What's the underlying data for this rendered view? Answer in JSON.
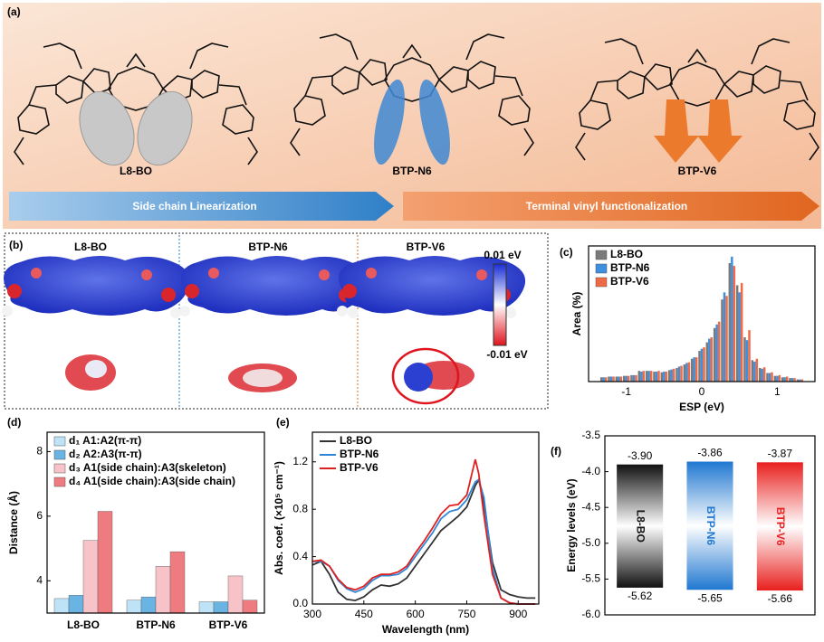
{
  "panel_a": {
    "label": "(a)",
    "molecules": [
      "L8-BO",
      "BTP-N6",
      "BTP-V6"
    ],
    "arrows": [
      "Side chain Linearization",
      "Terminal vinyl functionalization"
    ]
  },
  "panel_b": {
    "label": "(b)",
    "molecules": [
      "L8-BO",
      "BTP-N6",
      "BTP-V6"
    ],
    "colorbar": {
      "max": "0.01 eV",
      "min": "-0.01 eV"
    }
  },
  "chart_data": [
    {
      "type": "bar",
      "label": "(c)",
      "xlabel": "ESP (eV)",
      "ylabel": "Area (%)",
      "x": [
        -1.3,
        -1.2,
        -1.1,
        -1.0,
        -0.9,
        -0.8,
        -0.7,
        -0.6,
        -0.5,
        -0.4,
        -0.3,
        -0.2,
        -0.1,
        0.0,
        0.1,
        0.2,
        0.3,
        0.4,
        0.5,
        0.6,
        0.7,
        0.8,
        0.9,
        1.0,
        1.1,
        1.2,
        1.3
      ],
      "series": [
        {
          "name": "L8-BO",
          "color": "#7a7a7a",
          "values": [
            0.6,
            0.7,
            0.7,
            0.8,
            0.9,
            1.5,
            1.5,
            1.4,
            1.3,
            1.6,
            1.9,
            2.4,
            3.2,
            4.3,
            5.5,
            7.5,
            11.5,
            16.6,
            13.5,
            6.2,
            3,
            1.9,
            1.2,
            0.8,
            0.6,
            0.5,
            0.3
          ]
        },
        {
          "name": "BTP-N6",
          "color": "#3d8fe0",
          "values": [
            0.6,
            0.7,
            0.7,
            0.8,
            0.9,
            1.4,
            1.5,
            1.4,
            1.4,
            1.7,
            2.1,
            2.6,
            3.4,
            4.6,
            6,
            8,
            12.5,
            17.5,
            12.5,
            5.8,
            2.8,
            1.8,
            1.2,
            0.8,
            0.6,
            0.5,
            0.3
          ]
        },
        {
          "name": "BTP-V6",
          "color": "#f06a45",
          "values": [
            0.6,
            0.7,
            0.7,
            0.8,
            0.9,
            1.5,
            1.5,
            1.5,
            1.4,
            1.8,
            2.2,
            2.7,
            3.4,
            4.8,
            6.2,
            8.4,
            12,
            16.2,
            13.8,
            7.2,
            3.2,
            2,
            1.3,
            0.9,
            0.7,
            0.5,
            0.3
          ]
        }
      ],
      "xlim": [
        -1.5,
        1.5
      ],
      "xticks": [
        -1,
        0,
        1
      ],
      "ylim": [
        0,
        19
      ],
      "legend": "upper left"
    },
    {
      "type": "bar",
      "label": "(d)",
      "ylabel": "Distance (Å)",
      "categories": [
        "L8-BO",
        "BTP-N6",
        "BTP-V6"
      ],
      "series": [
        {
          "name": "d₁ A1:A2(π-π)",
          "color": "#bfe3f6",
          "values": [
            3.45,
            3.4,
            3.35
          ]
        },
        {
          "name": "d₂ A2:A3(π-π)",
          "color": "#6ab4e3",
          "values": [
            3.55,
            3.5,
            3.35
          ]
        },
        {
          "name": "d₃ A1(side chain):A3(skeleton)",
          "color": "#f7c3c8",
          "values": [
            5.25,
            4.45,
            4.15
          ]
        },
        {
          "name": "d₄ A1(side chain):A3(side chain)",
          "color": "#ee7b80",
          "values": [
            6.15,
            4.9,
            3.4
          ]
        }
      ],
      "ylim": [
        3,
        8.6
      ],
      "yticks": [
        4,
        6,
        8
      ],
      "legend": "upper left"
    },
    {
      "type": "line",
      "label": "(e)",
      "xlabel": "Wavelength (nm)",
      "ylabel": "Abs. coef. (×10⁵ cm⁻¹)",
      "x": [
        300,
        325,
        350,
        375,
        400,
        425,
        450,
        475,
        500,
        525,
        550,
        575,
        600,
        625,
        650,
        675,
        700,
        725,
        750,
        775,
        785,
        800,
        825,
        850,
        875,
        900,
        925,
        950
      ],
      "series": [
        {
          "name": "L8-BO",
          "color": "#333333",
          "values": [
            0.33,
            0.36,
            0.25,
            0.1,
            0.04,
            0.03,
            0.06,
            0.12,
            0.16,
            0.15,
            0.17,
            0.22,
            0.32,
            0.42,
            0.52,
            0.62,
            0.68,
            0.74,
            0.82,
            1.0,
            1.05,
            0.85,
            0.35,
            0.12,
            0.08,
            0.06,
            0.05,
            0.05
          ]
        },
        {
          "name": "BTP-N6",
          "color": "#2f86d6",
          "values": [
            0.36,
            0.36,
            0.32,
            0.2,
            0.13,
            0.1,
            0.13,
            0.2,
            0.24,
            0.24,
            0.25,
            0.3,
            0.4,
            0.5,
            0.6,
            0.72,
            0.78,
            0.8,
            0.88,
            1.03,
            1.05,
            0.9,
            0.3,
            0.05,
            0.01,
            0,
            0,
            0
          ]
        },
        {
          "name": "BTP-V6",
          "color": "#e0201e",
          "values": [
            0.36,
            0.37,
            0.32,
            0.21,
            0.14,
            0.12,
            0.15,
            0.22,
            0.25,
            0.25,
            0.27,
            0.32,
            0.43,
            0.53,
            0.64,
            0.76,
            0.83,
            0.84,
            0.92,
            1.22,
            1.1,
            0.75,
            0.25,
            0.05,
            0.01,
            0,
            0,
            0
          ]
        }
      ],
      "xlim": [
        300,
        960
      ],
      "xticks": [
        300,
        450,
        600,
        750,
        900
      ],
      "ylim": [
        0,
        1.45
      ],
      "yticks": [
        {
          "value": 0,
          "label": "0.0"
        },
        0.4,
        0.8,
        1.2
      ],
      "legend": "upper left"
    },
    {
      "type": "energy_level",
      "label": "(f)",
      "ylabel": "Energy levels (eV)",
      "categories": [
        "L8-BO",
        "BTP-N6",
        "BTP-V6"
      ],
      "colors": [
        "#111111",
        "#1f77d0",
        "#e8201e"
      ],
      "lumo": {
        "values": [
          -3.9,
          -3.86,
          -3.87
        ],
        "value_labels": [
          "-3.90",
          "-3.86",
          "-3.87"
        ]
      },
      "homo": {
        "values": [
          -5.62,
          -5.65,
          -5.66
        ],
        "value_labels": [
          "-5.62",
          "-5.65",
          "-5.66"
        ]
      },
      "ylim": [
        -6.0,
        -3.5
      ],
      "yticks": [
        -3.5,
        {
          "value": -4,
          "label": "-4.0"
        },
        -4.5,
        {
          "value": -5,
          "label": "-5.0"
        },
        -5.5,
        {
          "value": -6,
          "label": "-6.0"
        }
      ]
    }
  ]
}
